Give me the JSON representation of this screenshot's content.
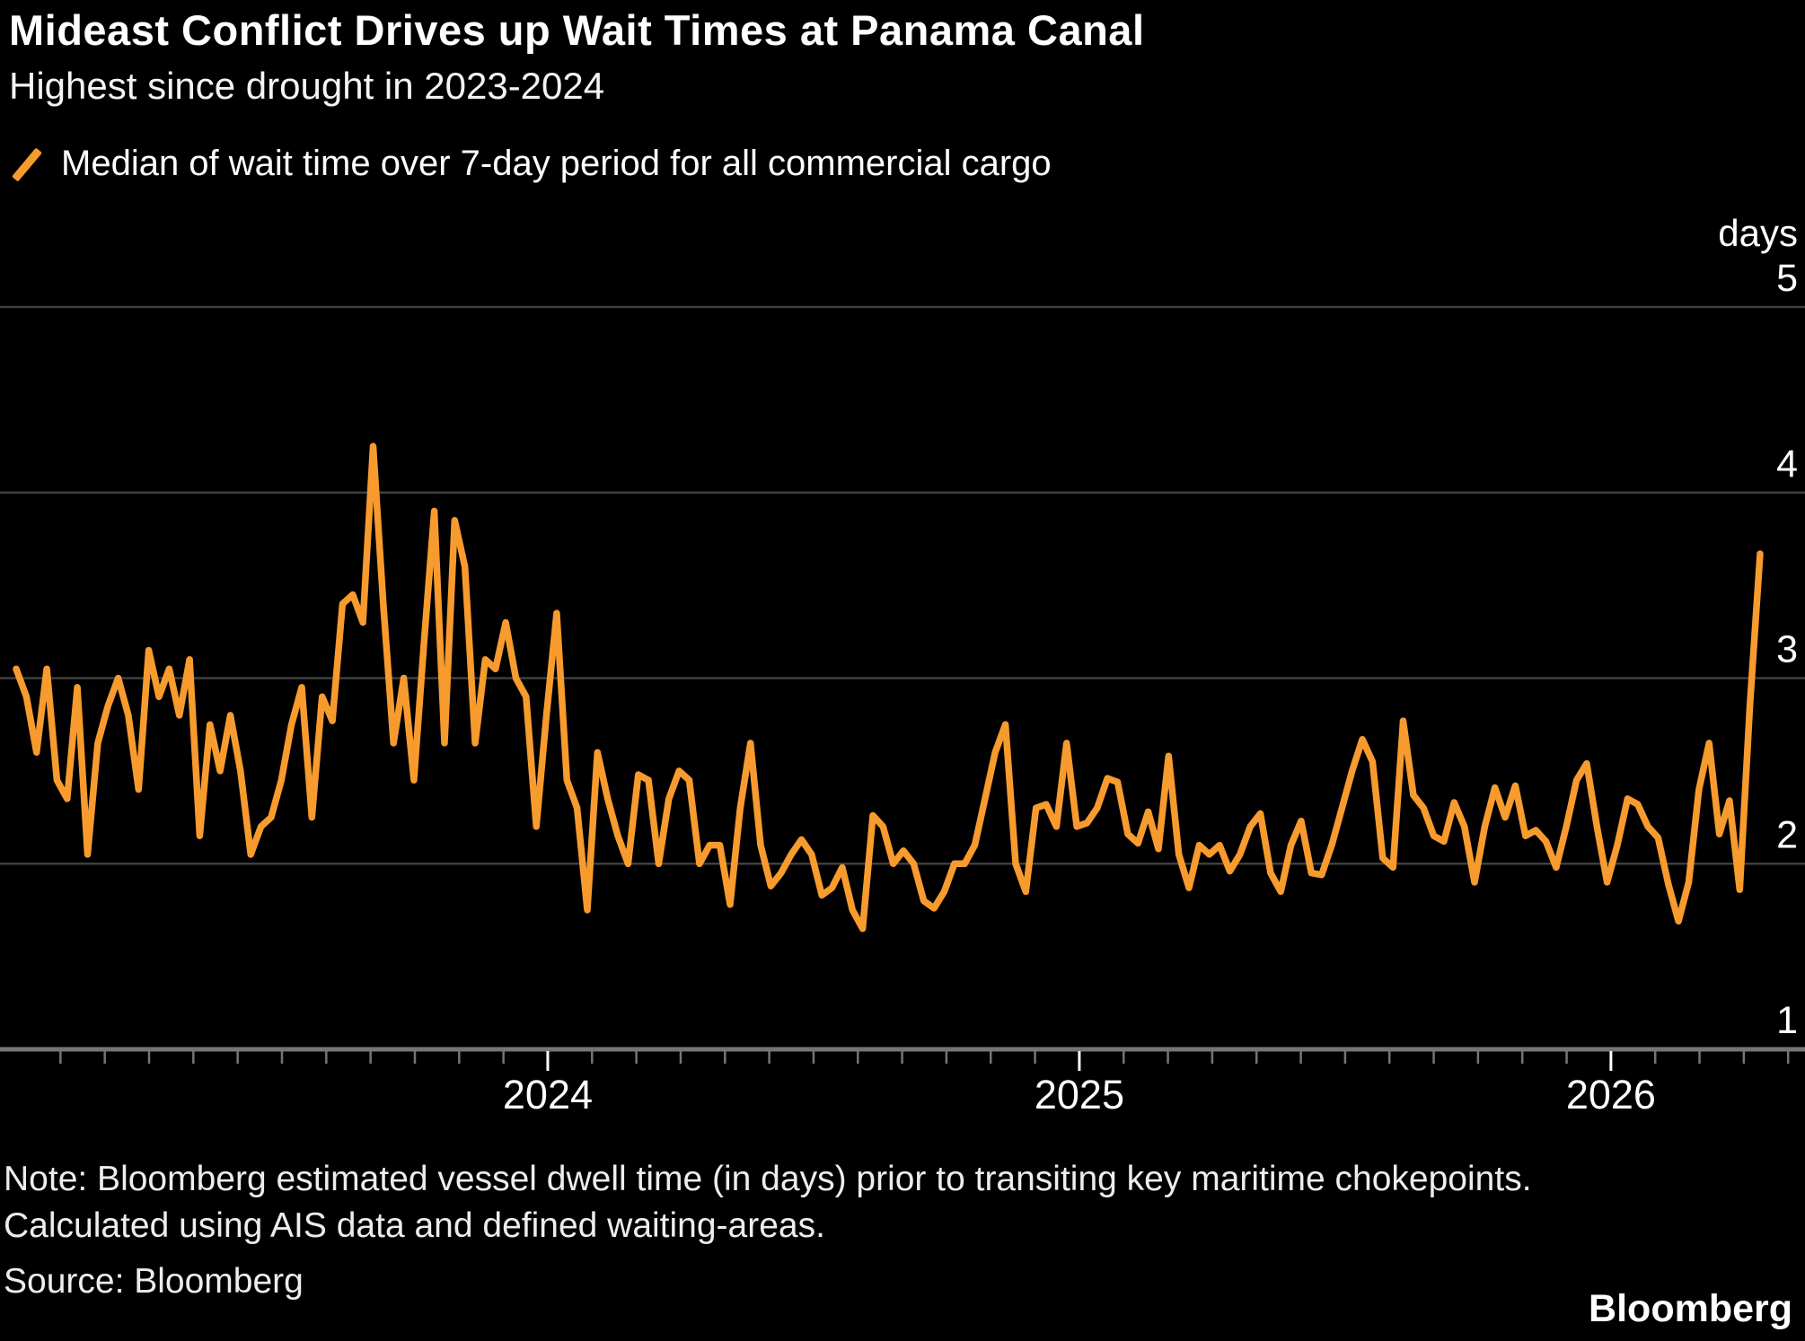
{
  "header": {
    "title": "Mideast Conflict Drives up Wait Times at Panama Canal",
    "subtitle": "Highest since drought in 2023-2024"
  },
  "legend": {
    "label": "Median of wait time over 7-day period for all commercial cargo"
  },
  "footer": {
    "note_line1": "Note: Bloomberg estimated vessel dwell time (in days) prior to transiting key maritime chokepoints.",
    "note_line2": "Calculated using AIS data and defined waiting-areas.",
    "source": "Source: Bloomberg",
    "logo": "Bloomberg"
  },
  "colors": {
    "accent_orange": "#F79B2E",
    "background": "#000000",
    "gridline": "#3f3f3f",
    "axis_line": "#757575",
    "text_white": "#ffffff"
  },
  "chart_data": {
    "type": "line",
    "title": "Median of wait time over 7-day period for all commercial cargo",
    "unit_label": "days",
    "ylabel": "days",
    "ylim": [
      1,
      5
    ],
    "y_ticks": [
      5,
      4,
      3,
      2,
      1
    ],
    "gridlines_at": [
      5,
      4,
      3,
      2
    ],
    "grid": true,
    "legend_position": "top-left",
    "x_axis": {
      "year_labels": [
        "2024",
        "2025",
        "2026"
      ],
      "minor_ticks": "monthly",
      "start": "2023-01-01",
      "end": "2026-04-12"
    },
    "series": [
      {
        "name": "Median wait time, all commercial cargo (days)",
        "start_date": "2023-01-01",
        "interval_days": 7,
        "values": [
          3.05,
          2.9,
          2.6,
          3.05,
          2.45,
          2.35,
          2.95,
          2.05,
          2.65,
          2.85,
          3.0,
          2.8,
          2.4,
          3.15,
          2.9,
          3.05,
          2.8,
          3.1,
          2.15,
          2.75,
          2.5,
          2.8,
          2.5,
          2.05,
          2.2,
          2.25,
          2.45,
          2.75,
          2.95,
          2.25,
          2.9,
          2.77,
          3.4,
          3.45,
          3.3,
          4.25,
          3.4,
          2.65,
          3.0,
          2.45,
          3.2,
          3.9,
          2.65,
          3.85,
          3.6,
          2.65,
          3.1,
          3.05,
          3.3,
          3.0,
          2.9,
          2.2,
          2.8,
          3.35,
          2.45,
          2.3,
          1.75,
          2.6,
          2.35,
          2.15,
          2.0,
          2.48,
          2.45,
          2.0,
          2.35,
          2.5,
          2.45,
          2.0,
          2.1,
          2.1,
          1.78,
          2.3,
          2.65,
          2.1,
          1.88,
          1.95,
          2.05,
          2.13,
          2.05,
          1.83,
          1.87,
          1.98,
          1.75,
          1.65,
          2.26,
          2.2,
          2.0,
          2.07,
          2.0,
          1.8,
          1.76,
          1.85,
          2.0,
          2.0,
          2.1,
          2.35,
          2.6,
          2.75,
          2.0,
          1.85,
          2.3,
          2.32,
          2.2,
          2.65,
          2.2,
          2.22,
          2.3,
          2.46,
          2.44,
          2.16,
          2.11,
          2.28,
          2.08,
          2.58,
          2.05,
          1.87,
          2.1,
          2.05,
          2.1,
          1.96,
          2.05,
          2.2,
          2.27,
          1.95,
          1.85,
          2.1,
          2.23,
          1.95,
          1.94,
          2.1,
          2.3,
          2.5,
          2.67,
          2.55,
          2.03,
          1.98,
          2.77,
          2.37,
          2.3,
          2.15,
          2.12,
          2.33,
          2.2,
          1.9,
          2.2,
          2.41,
          2.25,
          2.42,
          2.15,
          2.18,
          2.12,
          1.98,
          2.2,
          2.45,
          2.54,
          2.2,
          1.9,
          2.1,
          2.35,
          2.32,
          2.2,
          2.14,
          1.89,
          1.69,
          1.9,
          2.4,
          2.65,
          2.16,
          2.34,
          1.86,
          2.85,
          3.67
        ]
      }
    ]
  }
}
